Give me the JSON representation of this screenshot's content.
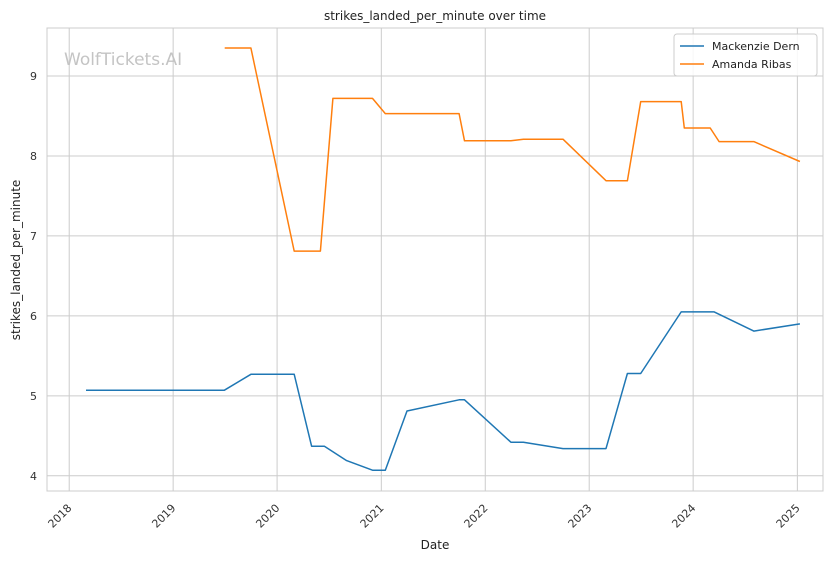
{
  "chart_data": {
    "type": "line",
    "title": "strikes_landed_per_minute over time",
    "xlabel": "Date",
    "ylabel": "strikes_landed_per_minute",
    "watermark": "WolfTickets.AI",
    "x_ticks": [
      "2018",
      "2019",
      "2020",
      "2021",
      "2022",
      "2023",
      "2024",
      "2025"
    ],
    "y_ticks": [
      "4",
      "5",
      "6",
      "7",
      "8",
      "9"
    ],
    "xlim": [
      "2017-10-15",
      "2025-04-01"
    ],
    "ylim": [
      3.81,
      9.6
    ],
    "grid": true,
    "legend_position": "top-right",
    "series": [
      {
        "name": "Mackenzie Dern",
        "color": "#1f77b4",
        "points": [
          [
            "2018-03-01",
            5.07
          ],
          [
            "2019-06-30",
            5.07
          ],
          [
            "2019-10-01",
            5.27
          ],
          [
            "2020-03-01",
            5.27
          ],
          [
            "2020-05-01",
            4.37
          ],
          [
            "2020-06-15",
            4.37
          ],
          [
            "2020-09-01",
            4.19
          ],
          [
            "2020-12-01",
            4.07
          ],
          [
            "2021-01-15",
            4.07
          ],
          [
            "2021-04-01",
            4.81
          ],
          [
            "2021-10-01",
            4.95
          ],
          [
            "2021-10-20",
            4.95
          ],
          [
            "2022-04-01",
            4.42
          ],
          [
            "2022-05-15",
            4.42
          ],
          [
            "2022-10-01",
            4.34
          ],
          [
            "2023-03-01",
            4.34
          ],
          [
            "2023-05-15",
            5.28
          ],
          [
            "2023-07-01",
            5.28
          ],
          [
            "2023-11-20",
            6.05
          ],
          [
            "2024-03-15",
            6.05
          ],
          [
            "2024-08-01",
            5.81
          ],
          [
            "2025-01-10",
            5.9
          ]
        ]
      },
      {
        "name": "Amanda Ribas",
        "color": "#ff7f0e",
        "points": [
          [
            "2019-07-01",
            9.35
          ],
          [
            "2019-10-01",
            9.35
          ],
          [
            "2020-03-01",
            6.81
          ],
          [
            "2020-06-01",
            6.81
          ],
          [
            "2020-07-15",
            8.72
          ],
          [
            "2020-12-01",
            8.72
          ],
          [
            "2021-01-15",
            8.53
          ],
          [
            "2021-10-01",
            8.53
          ],
          [
            "2021-10-20",
            8.19
          ],
          [
            "2022-04-01",
            8.19
          ],
          [
            "2022-05-15",
            8.21
          ],
          [
            "2022-10-01",
            8.21
          ],
          [
            "2023-03-01",
            7.69
          ],
          [
            "2023-05-15",
            7.69
          ],
          [
            "2023-07-01",
            8.68
          ],
          [
            "2023-11-20",
            8.68
          ],
          [
            "2023-12-01",
            8.35
          ],
          [
            "2024-03-01",
            8.35
          ],
          [
            "2024-04-01",
            8.18
          ],
          [
            "2024-08-01",
            8.18
          ],
          [
            "2025-01-10",
            7.93
          ]
        ]
      }
    ]
  }
}
